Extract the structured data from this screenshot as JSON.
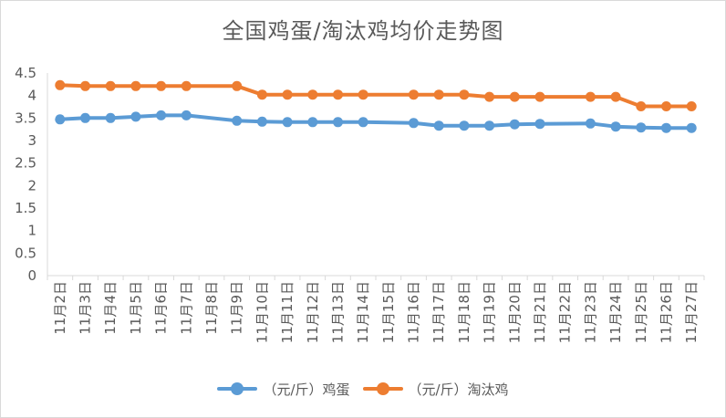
{
  "chart_data": {
    "type": "line",
    "title": "全国鸡蛋/淘汰鸡均价走势图",
    "xlabel": "",
    "ylabel": "",
    "ylim": [
      0,
      4.5
    ],
    "yticks": [
      "0",
      "0.5",
      "1",
      "1.5",
      "2",
      "2.5",
      "3",
      "3.5",
      "4",
      "4.5"
    ],
    "grid": false,
    "legend_position": "bottom",
    "categories": [
      "11月2日",
      "11月3日",
      "11月4日",
      "11月5日",
      "11月6日",
      "11月7日",
      "11月8日",
      "11月9日",
      "11月10日",
      "11月11日",
      "11月12日",
      "11月13日",
      "11月14日",
      "11月15日",
      "11月16日",
      "11月17日",
      "11月18日",
      "11月19日",
      "11月20日",
      "11月21日",
      "11月22日",
      "11月23日",
      "11月24日",
      "11月25日",
      "11月26日",
      "11月27日"
    ],
    "series": [
      {
        "name": "（元/斤）鸡蛋",
        "color": "#5b9bd5",
        "values": [
          3.47,
          3.5,
          3.5,
          3.53,
          3.56,
          3.56,
          null,
          3.44,
          3.42,
          3.41,
          3.41,
          3.41,
          3.41,
          null,
          3.39,
          3.33,
          3.33,
          3.33,
          3.36,
          3.37,
          null,
          3.38,
          3.31,
          3.29,
          3.28,
          3.28
        ]
      },
      {
        "name": "（元/斤）淘汰鸡",
        "color": "#ed7d31",
        "values": [
          4.23,
          4.21,
          4.21,
          4.21,
          4.21,
          4.21,
          null,
          4.21,
          4.02,
          4.02,
          4.02,
          4.02,
          4.02,
          null,
          4.02,
          4.02,
          4.02,
          3.97,
          3.97,
          3.97,
          null,
          3.97,
          3.97,
          3.76,
          3.76,
          3.76
        ]
      }
    ]
  }
}
